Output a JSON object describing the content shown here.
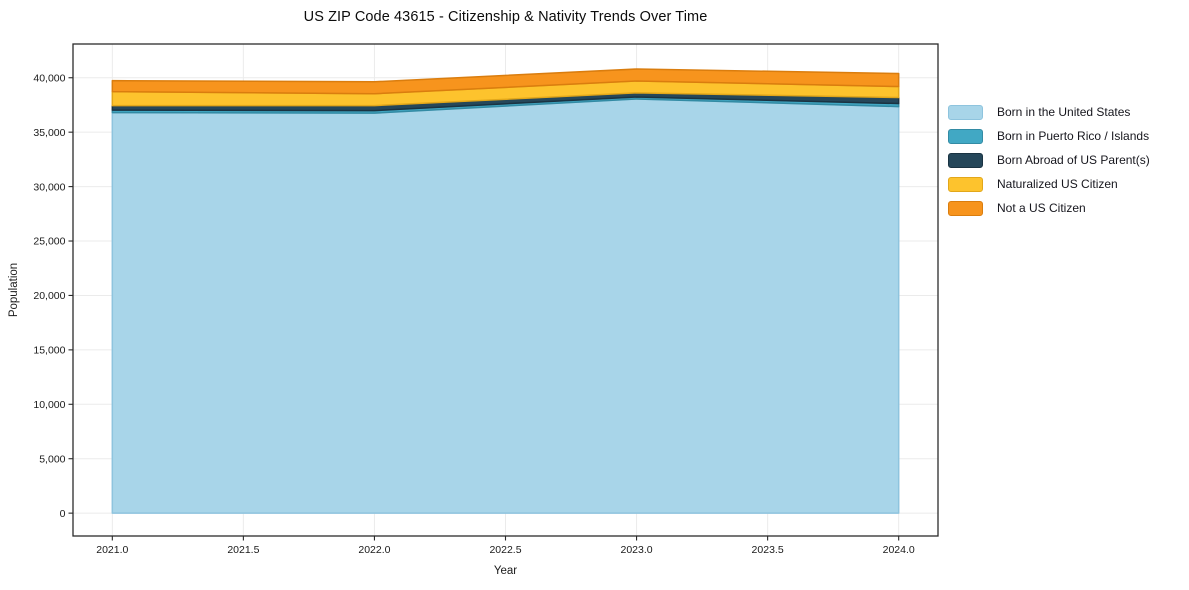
{
  "chart_data": {
    "type": "area",
    "stacked": true,
    "title": "US ZIP Code 43615 - Citizenship & Nativity Trends Over Time",
    "xlabel": "Year",
    "ylabel": "Population",
    "x": [
      2021,
      2022,
      2023,
      2024
    ],
    "series": [
      {
        "name": "Born in the United States",
        "color": "#a8d5e9",
        "edge_color": "#8ec4de",
        "values": [
          36800,
          36750,
          38050,
          37350
        ]
      },
      {
        "name": "Born in Puerto Rico / Islands",
        "color": "#41a8c4",
        "edge_color": "#338ba4",
        "values": [
          230,
          230,
          180,
          280
        ]
      },
      {
        "name": "Born Abroad of US Parent(s)",
        "color": "#25475a",
        "edge_color": "#1a3342",
        "values": [
          410,
          460,
          380,
          550
        ]
      },
      {
        "name": "Naturalized US Citizen",
        "color": "#fdc32d",
        "edge_color": "#e2a71a",
        "values": [
          1280,
          1090,
          1090,
          1010
        ]
      },
      {
        "name": "Not a US Citizen",
        "color": "#f7941d",
        "edge_color": "#da7d0e",
        "values": [
          1010,
          1100,
          1100,
          1200
        ]
      }
    ],
    "totals": [
      39730,
      39630,
      40800,
      40390
    ],
    "xlim": [
      2020.85,
      2024.15
    ],
    "ylim": [
      -2100,
      43100
    ],
    "xticks": {
      "values": [
        2021.0,
        2021.5,
        2022.0,
        2022.5,
        2023.0,
        2023.5,
        2024.0
      ],
      "labels": [
        "2021.0",
        "2021.5",
        "2022.0",
        "2022.5",
        "2023.0",
        "2023.5",
        "2024.0"
      ]
    },
    "yticks": {
      "values": [
        0,
        5000,
        10000,
        15000,
        20000,
        25000,
        30000,
        35000,
        40000
      ],
      "labels": [
        "0",
        "5,000",
        "10,000",
        "15,000",
        "20,000",
        "25,000",
        "30,000",
        "35,000",
        "40,000"
      ]
    },
    "grid": true,
    "grid_color": "#ebebeb",
    "spine_color": "#2b2b2b",
    "tick_color": "#1a1a1a",
    "text_color": "#1a1a1a",
    "legend_position": "center right outside"
  }
}
